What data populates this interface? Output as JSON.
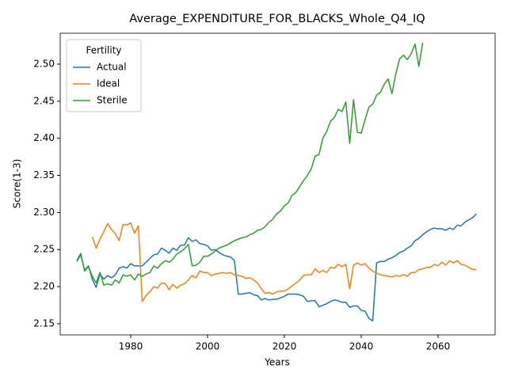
{
  "chart_data": {
    "type": "line",
    "title": "Average_EXPENDITURE_FOR_BLACKS_Whole_Q4_IQ",
    "x_label": "Years",
    "y_label": "Score(1-3)",
    "legend_title": "Fertility",
    "legend_position": "upper left",
    "x": [
      1966,
      1967,
      1968,
      1969,
      1970,
      1971,
      1972,
      1973,
      1974,
      1975,
      1976,
      1977,
      1978,
      1979,
      1980,
      1981,
      1982,
      1983,
      1984,
      1985,
      1986,
      1987,
      1988,
      1989,
      1990,
      1991,
      1992,
      1993,
      1994,
      1995,
      1996,
      1997,
      1998,
      1999,
      2000,
      2001,
      2002,
      2003,
      2004,
      2005,
      2006,
      2007,
      2008,
      2009,
      2010,
      2011,
      2012,
      2013,
      2014,
      2015,
      2016,
      2017,
      2018,
      2019,
      2020,
      2021,
      2022,
      2023,
      2024,
      2025,
      2026,
      2027,
      2028,
      2029,
      2030,
      2031,
      2032,
      2033,
      2034,
      2035,
      2036,
      2037,
      2038,
      2039,
      2040,
      2041,
      2042,
      2043,
      2044,
      2045,
      2046,
      2047,
      2048,
      2049,
      2050,
      2051,
      2052,
      2053,
      2054,
      2055,
      2056,
      2057,
      2058,
      2059,
      2060,
      2061,
      2062,
      2063,
      2064,
      2065,
      2066,
      2067,
      2068,
      2069,
      2070
    ],
    "series": [
      {
        "name": "Actual",
        "color": "#1f77b4",
        "values": [
          2.234,
          2.243,
          2.222,
          2.228,
          2.21,
          2.199,
          2.217,
          2.21,
          2.215,
          2.212,
          2.216,
          2.225,
          2.227,
          2.225,
          2.231,
          2.228,
          2.228,
          2.228,
          2.233,
          2.238,
          2.243,
          2.244,
          2.252,
          2.249,
          2.245,
          2.252,
          2.249,
          2.256,
          2.256,
          2.266,
          2.261,
          2.263,
          2.258,
          2.257,
          2.255,
          2.249,
          2.25,
          2.246,
          2.243,
          2.241,
          2.24,
          2.235,
          2.19,
          2.19,
          2.191,
          2.192,
          2.189,
          2.188,
          2.182,
          2.184,
          2.182,
          2.183,
          2.183,
          2.185,
          2.187,
          2.19,
          2.19,
          2.19,
          2.189,
          2.187,
          2.18,
          2.181,
          2.181,
          2.173,
          2.175,
          2.177,
          2.18,
          2.182,
          2.181,
          2.179,
          2.179,
          2.172,
          2.174,
          2.174,
          2.168,
          2.167,
          2.157,
          2.154,
          2.232,
          2.234,
          2.234,
          2.237,
          2.239,
          2.242,
          2.246,
          2.248,
          2.252,
          2.255,
          2.262,
          2.265,
          2.27,
          2.274,
          2.277,
          2.279,
          2.278,
          2.278,
          2.276,
          2.279,
          2.277,
          2.283,
          2.282,
          2.287,
          2.29,
          2.293,
          2.298
        ]
      },
      {
        "name": "Ideal",
        "color": "#ff7f0e",
        "values": [
          null,
          null,
          null,
          null,
          2.267,
          2.252,
          2.264,
          2.274,
          2.285,
          2.277,
          2.271,
          2.262,
          2.284,
          2.283,
          2.286,
          2.272,
          2.282,
          2.18,
          2.188,
          2.193,
          2.2,
          2.198,
          2.205,
          2.204,
          2.196,
          2.203,
          2.198,
          2.202,
          2.204,
          2.209,
          2.215,
          2.212,
          2.221,
          2.219,
          2.219,
          2.215,
          2.217,
          2.218,
          2.219,
          2.218,
          2.219,
          2.216,
          2.215,
          2.214,
          2.211,
          2.212,
          2.209,
          2.205,
          2.197,
          2.191,
          2.192,
          2.19,
          2.193,
          2.194,
          2.194,
          2.197,
          2.201,
          2.205,
          2.209,
          2.215,
          2.216,
          2.216,
          2.224,
          2.219,
          2.222,
          2.219,
          2.226,
          2.225,
          2.23,
          2.227,
          2.23,
          2.197,
          2.229,
          2.232,
          2.229,
          2.231,
          2.225,
          2.221,
          2.218,
          2.216,
          2.215,
          2.214,
          2.213,
          2.215,
          2.214,
          2.216,
          2.214,
          2.219,
          2.219,
          2.223,
          2.224,
          2.226,
          2.226,
          2.23,
          2.228,
          2.233,
          2.229,
          2.235,
          2.232,
          2.235,
          2.23,
          2.229,
          2.226,
          2.223,
          2.223
        ]
      },
      {
        "name": "Sterile",
        "color": "#2ca02c",
        "values": [
          2.235,
          2.245,
          2.221,
          2.227,
          2.214,
          2.205,
          2.219,
          2.202,
          2.204,
          2.202,
          2.209,
          2.205,
          2.216,
          2.214,
          2.216,
          2.209,
          2.217,
          2.214,
          2.217,
          2.219,
          2.228,
          2.225,
          2.231,
          2.235,
          2.233,
          2.237,
          2.244,
          2.247,
          2.251,
          2.257,
          2.228,
          2.229,
          2.233,
          2.241,
          2.241,
          2.244,
          2.248,
          2.252,
          2.254,
          2.256,
          2.259,
          2.262,
          2.264,
          2.266,
          2.267,
          2.27,
          2.272,
          2.276,
          2.277,
          2.281,
          2.287,
          2.291,
          2.298,
          2.302,
          2.309,
          2.313,
          2.323,
          2.327,
          2.335,
          2.343,
          2.35,
          2.359,
          2.376,
          2.378,
          2.4,
          2.409,
          2.423,
          2.428,
          2.439,
          2.436,
          2.449,
          2.393,
          2.452,
          2.408,
          2.407,
          2.425,
          2.442,
          2.446,
          2.458,
          2.462,
          2.473,
          2.48,
          2.46,
          2.487,
          2.507,
          2.512,
          2.506,
          2.514,
          2.527,
          2.497,
          2.529,
          null,
          null,
          null,
          null,
          null,
          null,
          null,
          null,
          null,
          null,
          null,
          null,
          null,
          null
        ]
      }
    ],
    "xlim": [
      1961.65,
      2074.85
    ],
    "xticks": [
      1980,
      2000,
      2020,
      2040,
      2060
    ],
    "ylim": [
      2.135,
      2.5416
    ],
    "yticks": [
      2.15,
      {
        "value": 2.2,
        "label": "2.20"
      },
      2.25,
      {
        "value": 2.3,
        "label": "2.30"
      },
      2.35,
      {
        "value": 2.4,
        "label": "2.40"
      },
      2.45,
      {
        "value": 2.5,
        "label": "2.50"
      }
    ],
    "grid": false
  }
}
